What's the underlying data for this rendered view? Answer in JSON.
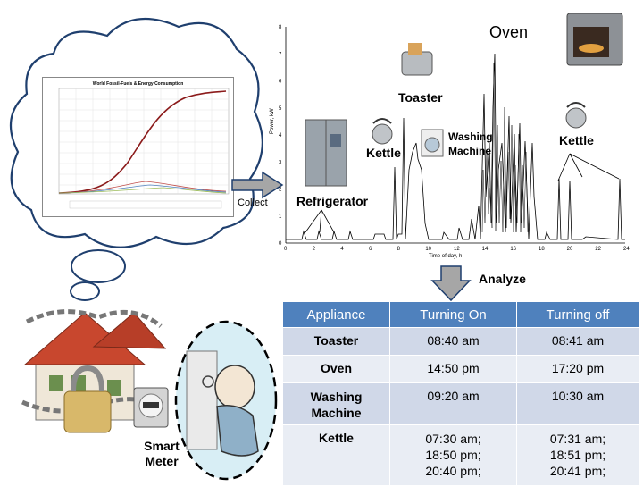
{
  "collect_label": "Collect",
  "analyze_label": "Analyze",
  "smart_meter_label": [
    "Smart",
    "Meter"
  ],
  "inset_chart": {
    "title": "World Fossil-Fuels & Energy Consumption"
  },
  "load_chart": {
    "y_axis_label": "Power, kW",
    "x_axis_label": "Time of day, h",
    "y_ticks": [
      "0",
      "1",
      "2",
      "3",
      "4",
      "5",
      "6",
      "7",
      "8"
    ],
    "x_ticks": [
      "0",
      "2",
      "4",
      "6",
      "8",
      "10",
      "12",
      "14",
      "16",
      "18",
      "20",
      "22",
      "24"
    ],
    "appliance_labels": {
      "oven": "Oven",
      "toaster": "Toaster",
      "kettle_left": "Kettle",
      "kettle_right": "Kettle",
      "washing_machine": [
        "Washing",
        "Machine"
      ],
      "refrigerator": "Refrigerator"
    }
  },
  "table": {
    "headers": [
      "Appliance",
      "Turning On",
      "Turning off"
    ],
    "rows": [
      {
        "appliance": [
          "Toaster"
        ],
        "on": [
          "08:40 am"
        ],
        "off": [
          "08:41 am"
        ]
      },
      {
        "appliance": [
          "Oven"
        ],
        "on": [
          "14:50 pm"
        ],
        "off": [
          "17:20 pm"
        ]
      },
      {
        "appliance": [
          "Washing",
          "Machine"
        ],
        "on": [
          "09:20 am"
        ],
        "off": [
          "10:30 am"
        ]
      },
      {
        "appliance": [
          "Kettle"
        ],
        "on": [
          "07:30 am;",
          "18:50 pm;",
          "20:40 pm;"
        ],
        "off": [
          "07:31 am;",
          "18:51 pm;",
          "20:41 pm;"
        ]
      }
    ]
  },
  "colors": {
    "table_header": "#4f81bd",
    "table_row_odd": "#d0d8e8",
    "table_row_even": "#e9edf4",
    "cloud_outline": "#1f3f6e",
    "arrow_fill": "#a6a6a6",
    "inset_curve": "#8b1a1a"
  }
}
